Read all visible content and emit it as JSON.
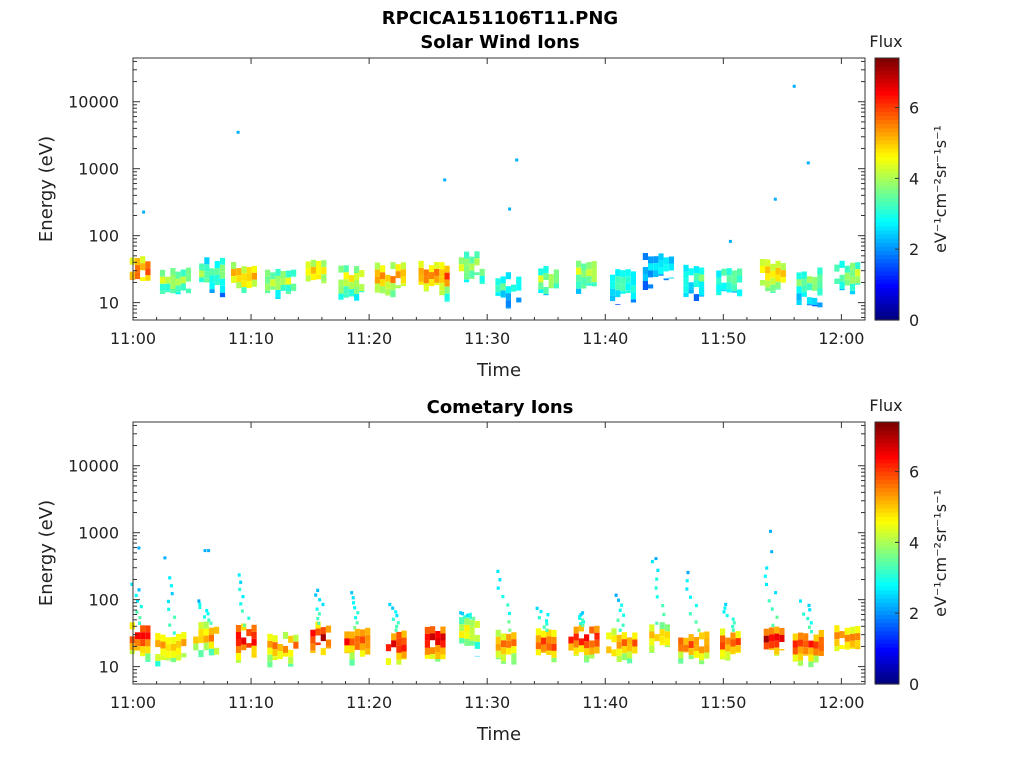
{
  "figure_title": "RPCICA151106T11.PNG",
  "chart_data": [
    {
      "type": "heatmap",
      "title": "Solar Wind Ions",
      "xlabel": "Time",
      "ylabel": "Energy (eV)",
      "y_scale": "log",
      "ylim": [
        5.5,
        45000
      ],
      "xlim": [
        "11:00",
        "12:02"
      ],
      "x_ticks": [
        "11:00",
        "11:10",
        "11:20",
        "11:30",
        "11:40",
        "11:50",
        "12:00"
      ],
      "y_ticks": [
        "10",
        "100",
        "1000",
        "10000"
      ],
      "colorbar": {
        "label": "Flux",
        "unit": "eV⁻¹cm⁻²sr⁻¹s⁻¹",
        "range": [
          0,
          7.4
        ],
        "ticks": [
          "0",
          "2",
          "4",
          "6"
        ]
      },
      "colormap": "jet",
      "bursts": [
        {
          "t": 0.6,
          "e": 30,
          "f": 6.0
        },
        {
          "t": 3.6,
          "e": 22,
          "f": 4.0
        },
        {
          "t": 6.7,
          "e": 28,
          "f": 3.8
        },
        {
          "t": 9.4,
          "e": 25,
          "f": 5.2
        },
        {
          "t": 12.5,
          "e": 21,
          "f": 4.1
        },
        {
          "t": 15.5,
          "e": 30,
          "f": 5.0
        },
        {
          "t": 18.5,
          "e": 22,
          "f": 4.6
        },
        {
          "t": 21.8,
          "e": 24,
          "f": 5.5
        },
        {
          "t": 25.5,
          "e": 25,
          "f": 5.8
        },
        {
          "t": 28.7,
          "e": 35,
          "f": 4.4
        },
        {
          "t": 31.8,
          "e": 17,
          "f": 3.2
        },
        {
          "t": 35.2,
          "e": 22,
          "f": 4.0
        },
        {
          "t": 38.4,
          "e": 28,
          "f": 4.3
        },
        {
          "t": 41.5,
          "e": 19,
          "f": 3.2
        },
        {
          "t": 44.5,
          "e": 35,
          "f": 2.8
        },
        {
          "t": 47.5,
          "e": 23,
          "f": 3.4
        },
        {
          "t": 50.5,
          "e": 22,
          "f": 3.5
        },
        {
          "t": 54.2,
          "e": 27,
          "f": 5.2
        },
        {
          "t": 57.3,
          "e": 20,
          "f": 3.8
        },
        {
          "t": 60.5,
          "e": 27,
          "f": 4.0
        }
      ],
      "isolated_points": [
        {
          "t": 0.9,
          "e": 225
        },
        {
          "t": 8.9,
          "e": 3500
        },
        {
          "t": 26.4,
          "e": 680
        },
        {
          "t": 31.9,
          "e": 250
        },
        {
          "t": 32.5,
          "e": 1350
        },
        {
          "t": 50.6,
          "e": 82
        },
        {
          "t": 54.4,
          "e": 350
        },
        {
          "t": 56.0,
          "e": 17000
        },
        {
          "t": 57.2,
          "e": 1220
        }
      ]
    },
    {
      "type": "heatmap",
      "title": "Cometary Ions",
      "xlabel": "Time",
      "ylabel": "Energy (eV)",
      "y_scale": "log",
      "ylim": [
        5.5,
        45000
      ],
      "xlim": [
        "11:00",
        "12:02"
      ],
      "x_ticks": [
        "11:00",
        "11:10",
        "11:20",
        "11:30",
        "11:40",
        "11:50",
        "12:00"
      ],
      "y_ticks": [
        "10",
        "100",
        "1000",
        "10000"
      ],
      "colorbar": {
        "label": "Flux",
        "unit": "eV⁻¹cm⁻²sr⁻¹s⁻¹",
        "range": [
          0,
          7.4
        ],
        "ticks": [
          "0",
          "2",
          "4",
          "6"
        ]
      },
      "colormap": "jet",
      "bursts": [
        {
          "t": 0.6,
          "e": 28,
          "f": 6.6,
          "plume": 160
        },
        {
          "t": 3.2,
          "e": 20,
          "f": 5.4,
          "plume": 200
        },
        {
          "t": 6.2,
          "e": 28,
          "f": 5.4,
          "plume": 90
        },
        {
          "t": 9.6,
          "e": 26,
          "f": 6.8,
          "plume": 220
        },
        {
          "t": 12.7,
          "e": 20,
          "f": 5.5,
          "plume": 0
        },
        {
          "t": 15.9,
          "e": 28,
          "f": 6.8,
          "plume": 130
        },
        {
          "t": 19.0,
          "e": 24,
          "f": 6.2,
          "plume": 120
        },
        {
          "t": 22.3,
          "e": 22,
          "f": 6.6,
          "plume": 80
        },
        {
          "t": 25.6,
          "e": 25,
          "f": 7.0,
          "plume": 0
        },
        {
          "t": 28.5,
          "e": 33,
          "f": 4.6,
          "plume": 60
        },
        {
          "t": 31.6,
          "e": 22,
          "f": 5.6,
          "plume": 250
        },
        {
          "t": 35.0,
          "e": 22,
          "f": 6.2,
          "plume": 70
        },
        {
          "t": 38.2,
          "e": 26,
          "f": 6.5,
          "plume": 60
        },
        {
          "t": 41.4,
          "e": 22,
          "f": 5.6,
          "plume": 110
        },
        {
          "t": 44.6,
          "e": 28,
          "f": 5.0,
          "plume": 350
        },
        {
          "t": 47.5,
          "e": 22,
          "f": 5.8,
          "plume": 240
        },
        {
          "t": 50.6,
          "e": 22,
          "f": 6.0,
          "plume": 80
        },
        {
          "t": 54.3,
          "e": 26,
          "f": 6.8,
          "plume": 280
        },
        {
          "t": 57.2,
          "e": 21,
          "f": 6.2,
          "plume": 90
        },
        {
          "t": 60.5,
          "e": 25,
          "f": 5.6,
          "plume": 0
        }
      ],
      "isolated_points": [
        {
          "t": 0.5,
          "e": 590
        },
        {
          "t": 2.7,
          "e": 420
        },
        {
          "t": 6.1,
          "e": 540
        },
        {
          "t": 6.4,
          "e": 540
        },
        {
          "t": 54.0,
          "e": 1050
        },
        {
          "t": 54.1,
          "e": 520
        },
        {
          "t": 44.3,
          "e": 410
        }
      ]
    }
  ]
}
